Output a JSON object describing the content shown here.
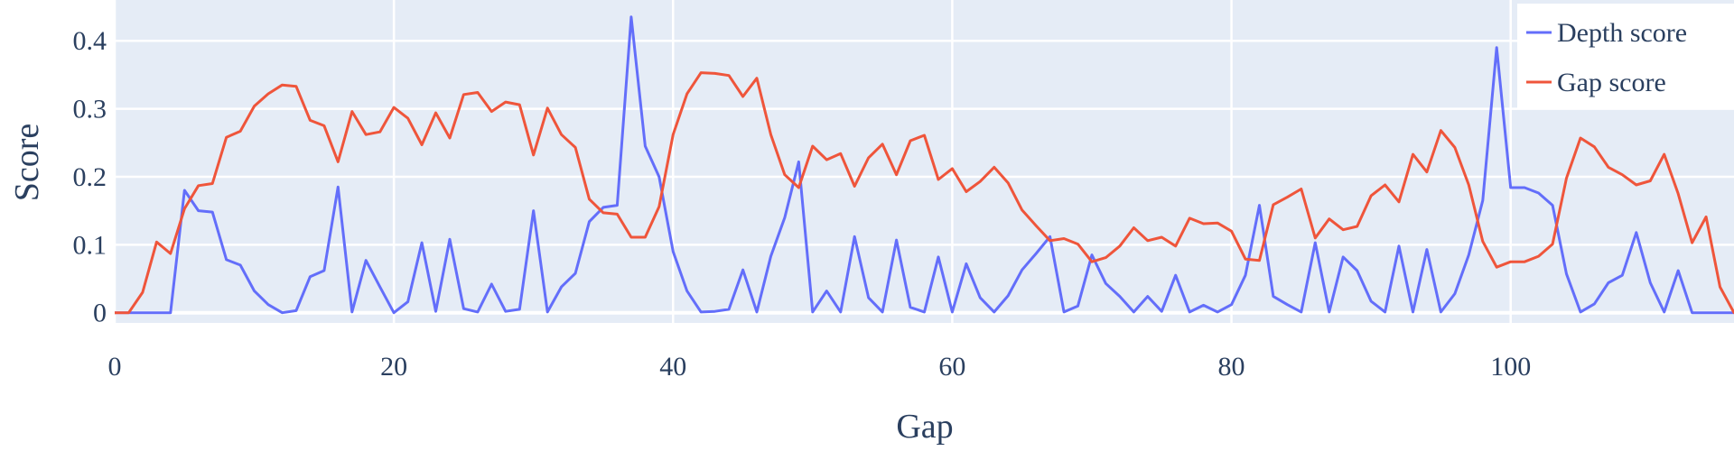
{
  "chart_data": {
    "type": "line",
    "xlabel": "Gap",
    "ylabel": "Score",
    "xlim": [
      0,
      116
    ],
    "ylim": [
      -0.015,
      0.46
    ],
    "xticks": [
      0,
      20,
      40,
      60,
      80,
      100
    ],
    "yticks": [
      0,
      0.1,
      0.2,
      0.3,
      0.4
    ],
    "xtick_labels": [
      "0",
      "20",
      "40",
      "60",
      "80",
      "100"
    ],
    "ytick_labels": [
      "0",
      "0.1",
      "0.2",
      "0.3",
      "0.4"
    ],
    "grid": true,
    "legend_position": "top-right",
    "series": [
      {
        "name": "Depth score",
        "color": "#636efa",
        "values": [
          0,
          0,
          0,
          0,
          0,
          0.18,
          0.15,
          0.148,
          0.078,
          0.07,
          0.032,
          0.012,
          0,
          0.003,
          0.053,
          0.062,
          0.185,
          0.001,
          0.077,
          0.038,
          0,
          0.016,
          0.103,
          0.002,
          0.108,
          0.006,
          0.001,
          0.042,
          0.002,
          0.005,
          0.15,
          0.001,
          0.038,
          0.058,
          0.134,
          0.155,
          0.158,
          0.435,
          0.245,
          0.2,
          0.09,
          0.032,
          0.001,
          0.002,
          0.005,
          0.063,
          0.001,
          0.083,
          0.14,
          0.222,
          0.001,
          0.032,
          0.001,
          0.112,
          0.022,
          0.001,
          0.107,
          0.008,
          0.001,
          0.082,
          0.001,
          0.072,
          0.022,
          0.001,
          0.025,
          0.063,
          0.087,
          0.112,
          0.001,
          0.01,
          0.085,
          0.043,
          0.024,
          0.001,
          0.024,
          0.002,
          0.055,
          0.001,
          0.011,
          0.001,
          0.012,
          0.055,
          0.158,
          0.024,
          0.012,
          0.001,
          0.103,
          0.001,
          0.082,
          0.062,
          0.017,
          0.001,
          0.098,
          0.001,
          0.093,
          0.001,
          0.028,
          0.085,
          0.165,
          0.39,
          0.184,
          0.184,
          0.176,
          0.158,
          0.057,
          0.001,
          0.013,
          0.044,
          0.055,
          0.118,
          0.044,
          0.001,
          0.062,
          0,
          0,
          0,
          0
        ]
      },
      {
        "name": "Gap score",
        "color": "#ef553b",
        "values": [
          0,
          0,
          0.03,
          0.104,
          0.087,
          0.153,
          0.187,
          0.19,
          0.258,
          0.267,
          0.304,
          0.322,
          0.335,
          0.333,
          0.283,
          0.275,
          0.222,
          0.296,
          0.262,
          0.266,
          0.302,
          0.286,
          0.247,
          0.294,
          0.257,
          0.321,
          0.324,
          0.296,
          0.31,
          0.306,
          0.232,
          0.301,
          0.262,
          0.243,
          0.167,
          0.147,
          0.145,
          0.111,
          0.111,
          0.156,
          0.262,
          0.322,
          0.353,
          0.352,
          0.349,
          0.318,
          0.345,
          0.262,
          0.203,
          0.184,
          0.245,
          0.225,
          0.234,
          0.186,
          0.228,
          0.248,
          0.203,
          0.253,
          0.261,
          0.196,
          0.212,
          0.178,
          0.193,
          0.214,
          0.191,
          0.151,
          0.128,
          0.106,
          0.109,
          0.101,
          0.075,
          0.081,
          0.098,
          0.125,
          0.106,
          0.111,
          0.098,
          0.139,
          0.131,
          0.132,
          0.12,
          0.079,
          0.077,
          0.159,
          0.17,
          0.182,
          0.11,
          0.138,
          0.122,
          0.127,
          0.172,
          0.188,
          0.163,
          0.233,
          0.207,
          0.268,
          0.243,
          0.188,
          0.105,
          0.067,
          0.075,
          0.075,
          0.083,
          0.101,
          0.198,
          0.257,
          0.244,
          0.214,
          0.203,
          0.188,
          0.194,
          0.233,
          0.175,
          0.103,
          0.141,
          0.038,
          0,
          0
        ]
      }
    ]
  }
}
